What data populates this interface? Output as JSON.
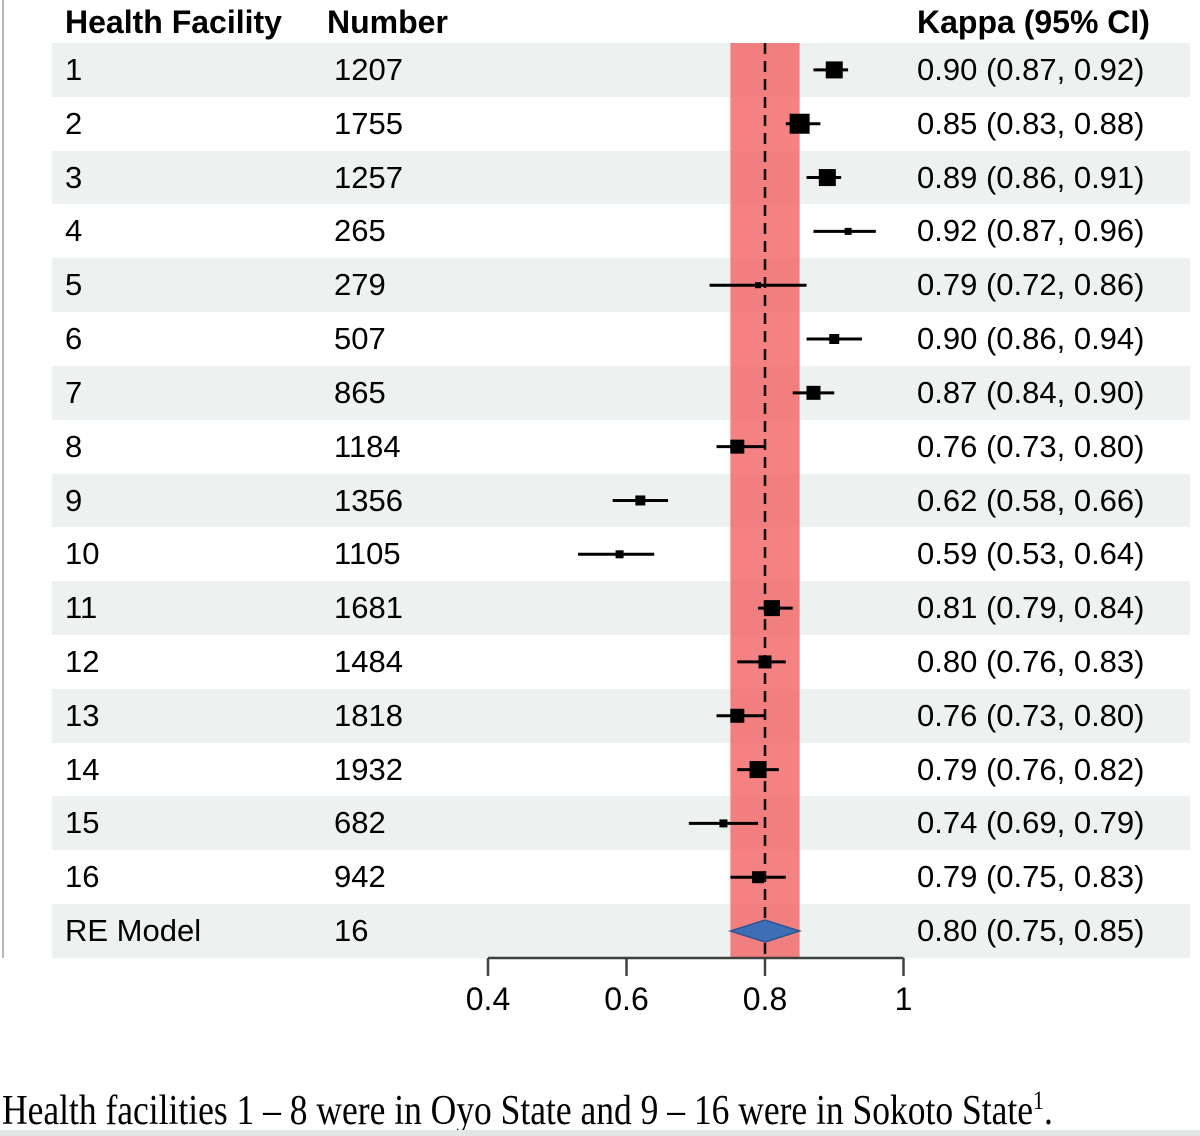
{
  "chart_data": {
    "type": "forest",
    "header": {
      "facility": "Health Facility",
      "number": "Number",
      "kappa": "Kappa (95% CI)"
    },
    "studies": [
      {
        "facility": "1",
        "number": "1207",
        "estimate": 0.9,
        "ci_lower": 0.87,
        "ci_upper": 0.92,
        "kappa_text": "0.90 (0.87, 0.92)",
        "marker_size": 17
      },
      {
        "facility": "2",
        "number": "1755",
        "estimate": 0.85,
        "ci_lower": 0.83,
        "ci_upper": 0.88,
        "kappa_text": "0.85 (0.83, 0.88)",
        "marker_size": 20
      },
      {
        "facility": "3",
        "number": "1257",
        "estimate": 0.89,
        "ci_lower": 0.86,
        "ci_upper": 0.91,
        "kappa_text": "0.89 (0.86, 0.91)",
        "marker_size": 17
      },
      {
        "facility": "4",
        "number": "265",
        "estimate": 0.92,
        "ci_lower": 0.87,
        "ci_upper": 0.96,
        "kappa_text": "0.92 (0.87, 0.96)",
        "marker_size": 7
      },
      {
        "facility": "5",
        "number": "279",
        "estimate": 0.79,
        "ci_lower": 0.72,
        "ci_upper": 0.86,
        "kappa_text": "0.79 (0.72, 0.86)",
        "marker_size": 6
      },
      {
        "facility": "6",
        "number": "507",
        "estimate": 0.9,
        "ci_lower": 0.86,
        "ci_upper": 0.94,
        "kappa_text": "0.90 (0.86, 0.94)",
        "marker_size": 10
      },
      {
        "facility": "7",
        "number": "865",
        "estimate": 0.87,
        "ci_lower": 0.84,
        "ci_upper": 0.9,
        "kappa_text": "0.87 (0.84, 0.90)",
        "marker_size": 14
      },
      {
        "facility": "8",
        "number": "1184",
        "estimate": 0.76,
        "ci_lower": 0.73,
        "ci_upper": 0.8,
        "kappa_text": "0.76 (0.73, 0.80)",
        "marker_size": 14
      },
      {
        "facility": "9",
        "number": "1356",
        "estimate": 0.62,
        "ci_lower": 0.58,
        "ci_upper": 0.66,
        "kappa_text": "0.62 (0.58, 0.66)",
        "marker_size": 10
      },
      {
        "facility": "10",
        "number": "1105",
        "estimate": 0.59,
        "ci_lower": 0.53,
        "ci_upper": 0.64,
        "kappa_text": "0.59 (0.53, 0.64)",
        "marker_size": 8
      },
      {
        "facility": "11",
        "number": "1681",
        "estimate": 0.81,
        "ci_lower": 0.79,
        "ci_upper": 0.84,
        "kappa_text": "0.81 (0.79, 0.84)",
        "marker_size": 16
      },
      {
        "facility": "12",
        "number": "1484",
        "estimate": 0.8,
        "ci_lower": 0.76,
        "ci_upper": 0.83,
        "kappa_text": "0.80 (0.76, 0.83)",
        "marker_size": 13
      },
      {
        "facility": "13",
        "number": "1818",
        "estimate": 0.76,
        "ci_lower": 0.73,
        "ci_upper": 0.8,
        "kappa_text": "0.76 (0.73, 0.80)",
        "marker_size": 14
      },
      {
        "facility": "14",
        "number": "1932",
        "estimate": 0.79,
        "ci_lower": 0.76,
        "ci_upper": 0.82,
        "kappa_text": "0.79 (0.76, 0.82)",
        "marker_size": 17
      },
      {
        "facility": "15",
        "number": "682",
        "estimate": 0.74,
        "ci_lower": 0.69,
        "ci_upper": 0.79,
        "kappa_text": "0.74 (0.69, 0.79)",
        "marker_size": 8
      },
      {
        "facility": "16",
        "number": "942",
        "estimate": 0.79,
        "ci_lower": 0.75,
        "ci_upper": 0.83,
        "kappa_text": "0.79 (0.75, 0.83)",
        "marker_size": 12
      }
    ],
    "summary": {
      "facility": "RE Model",
      "number": "16",
      "estimate": 0.8,
      "ci_lower": 0.75,
      "ci_upper": 0.85,
      "kappa_text": "0.80 (0.75, 0.85)",
      "shape": "diamond"
    },
    "x_axis": {
      "tick_values": [
        0.4,
        0.6,
        0.8,
        1.0
      ],
      "tick_labels": [
        "0.4",
        "0.6",
        "0.8",
        "1"
      ],
      "range": [
        0.4,
        1.0
      ]
    },
    "reference_line_value": 0.8,
    "shaded_band": {
      "lower": 0.75,
      "upper": 0.85
    },
    "legend_position": "none",
    "grid": false
  },
  "caption": {
    "text": "Health facilities 1 – 8 were in Oyo State and 9 – 16 were in Sokoto State",
    "sup": "1",
    "end": "."
  },
  "colors": {
    "zebra_row": "#edf1ef",
    "band_fill": "rgba(243,99,99,0.8)",
    "diamond_fill": "#3e6eb5",
    "diamond_stroke": "#2d5492",
    "axis": "#404040",
    "marker": "#000000",
    "dashed_line": "#141414"
  }
}
